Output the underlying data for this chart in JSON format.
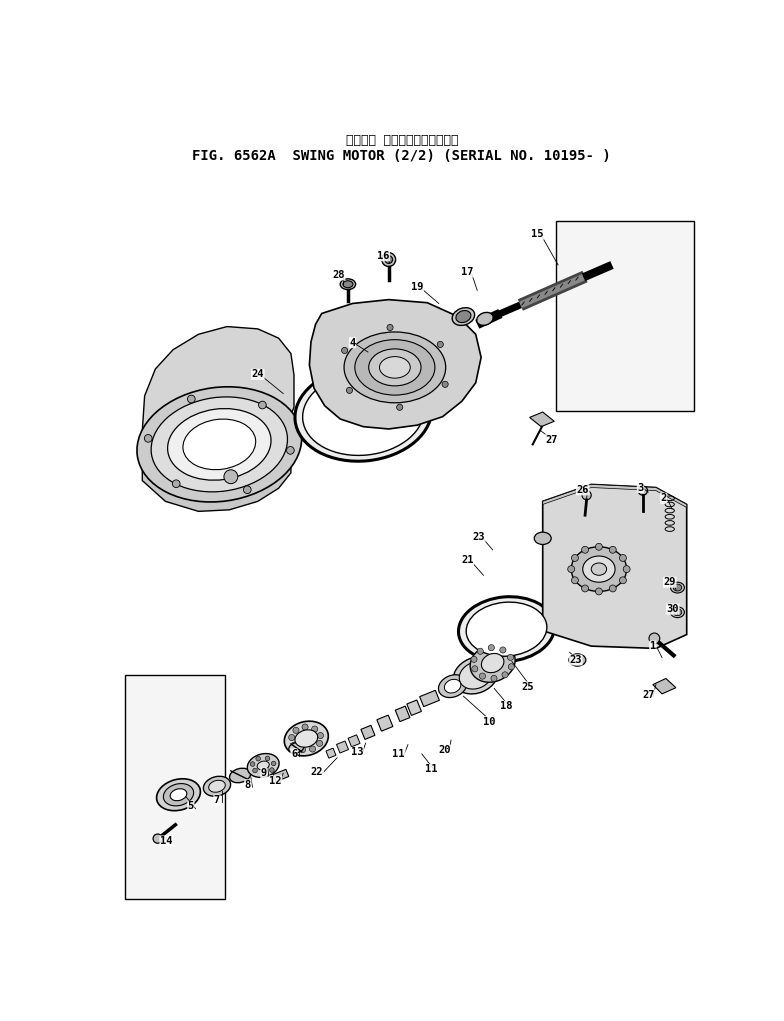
{
  "title_japanese": "スイング モータ　　　適用号機",
  "title_english": "FIG. 6562A  SWING MOTOR (2/2) (SERIAL NO. 10195- )",
  "bg_color": "#ffffff",
  "line_color": "#000000",
  "text_color": "#000000"
}
